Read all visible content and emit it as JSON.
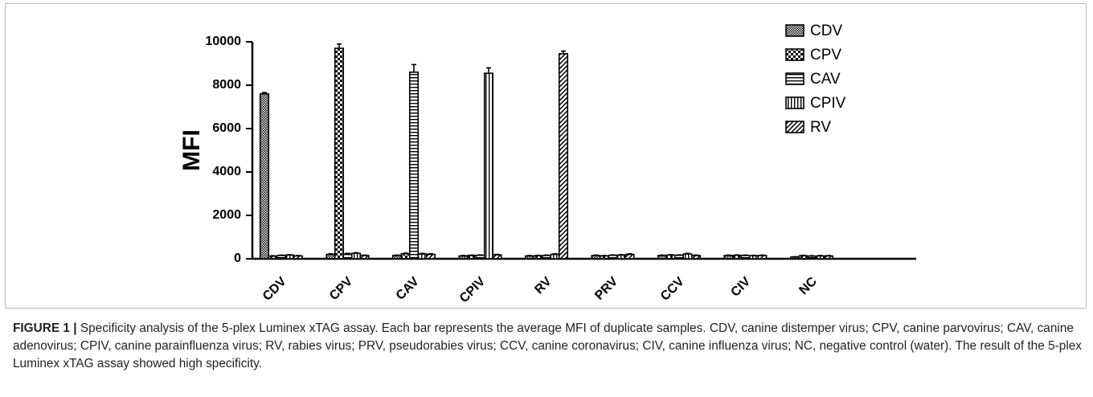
{
  "chart_data": {
    "type": "bar",
    "ylabel": "MFI",
    "categories": [
      "CDV",
      "CPV",
      "CAV",
      "CPIV",
      "RV",
      "PRV",
      "CCV",
      "CIV",
      "NC"
    ],
    "series": [
      {
        "name": "CDV",
        "color": "#000000",
        "values": [
          7600,
          200,
          150,
          130,
          130,
          150,
          150,
          150,
          80
        ],
        "errors": [
          60,
          30,
          20,
          20,
          20,
          20,
          20,
          20,
          15
        ]
      },
      {
        "name": "CPV",
        "color": "#000000",
        "values": [
          120,
          9700,
          230,
          150,
          140,
          130,
          170,
          160,
          140
        ],
        "errors": [
          20,
          200,
          30,
          20,
          20,
          20,
          20,
          20,
          20
        ]
      },
      {
        "name": "CAV",
        "color": "#000000",
        "values": [
          150,
          220,
          8600,
          160,
          150,
          160,
          160,
          150,
          120
        ],
        "errors": [
          20,
          30,
          350,
          20,
          20,
          20,
          20,
          20,
          20
        ]
      },
      {
        "name": "CPIV",
        "color": "#000000",
        "values": [
          170,
          250,
          220,
          8550,
          200,
          170,
          220,
          140,
          130
        ],
        "errors": [
          20,
          30,
          30,
          250,
          30,
          20,
          30,
          20,
          20
        ]
      },
      {
        "name": "RV",
        "color": "#000000",
        "values": [
          130,
          150,
          200,
          180,
          9450,
          200,
          150,
          150,
          130
        ],
        "errors": [
          20,
          20,
          30,
          20,
          120,
          30,
          20,
          20,
          20
        ]
      }
    ],
    "ylim": [
      0,
      10000
    ],
    "yticks": [
      0,
      2000,
      4000,
      6000,
      8000,
      10000
    ],
    "legend": "top-right"
  },
  "caption": {
    "label": "FIGURE 1 |",
    "text": "Specificity analysis of the 5-plex Luminex xTAG assay. Each bar represents the average MFI of duplicate samples. CDV, canine distemper virus; CPV, canine parvovirus; CAV, canine adenovirus; CPIV, canine parainfluenza virus; RV, rabies virus; PRV, pseudorabies virus; CCV, canine coronavirus; CIV, canine influenza virus; NC, negative control (water). The result of the 5-plex Luminex xTAG assay showed high specificity."
  }
}
